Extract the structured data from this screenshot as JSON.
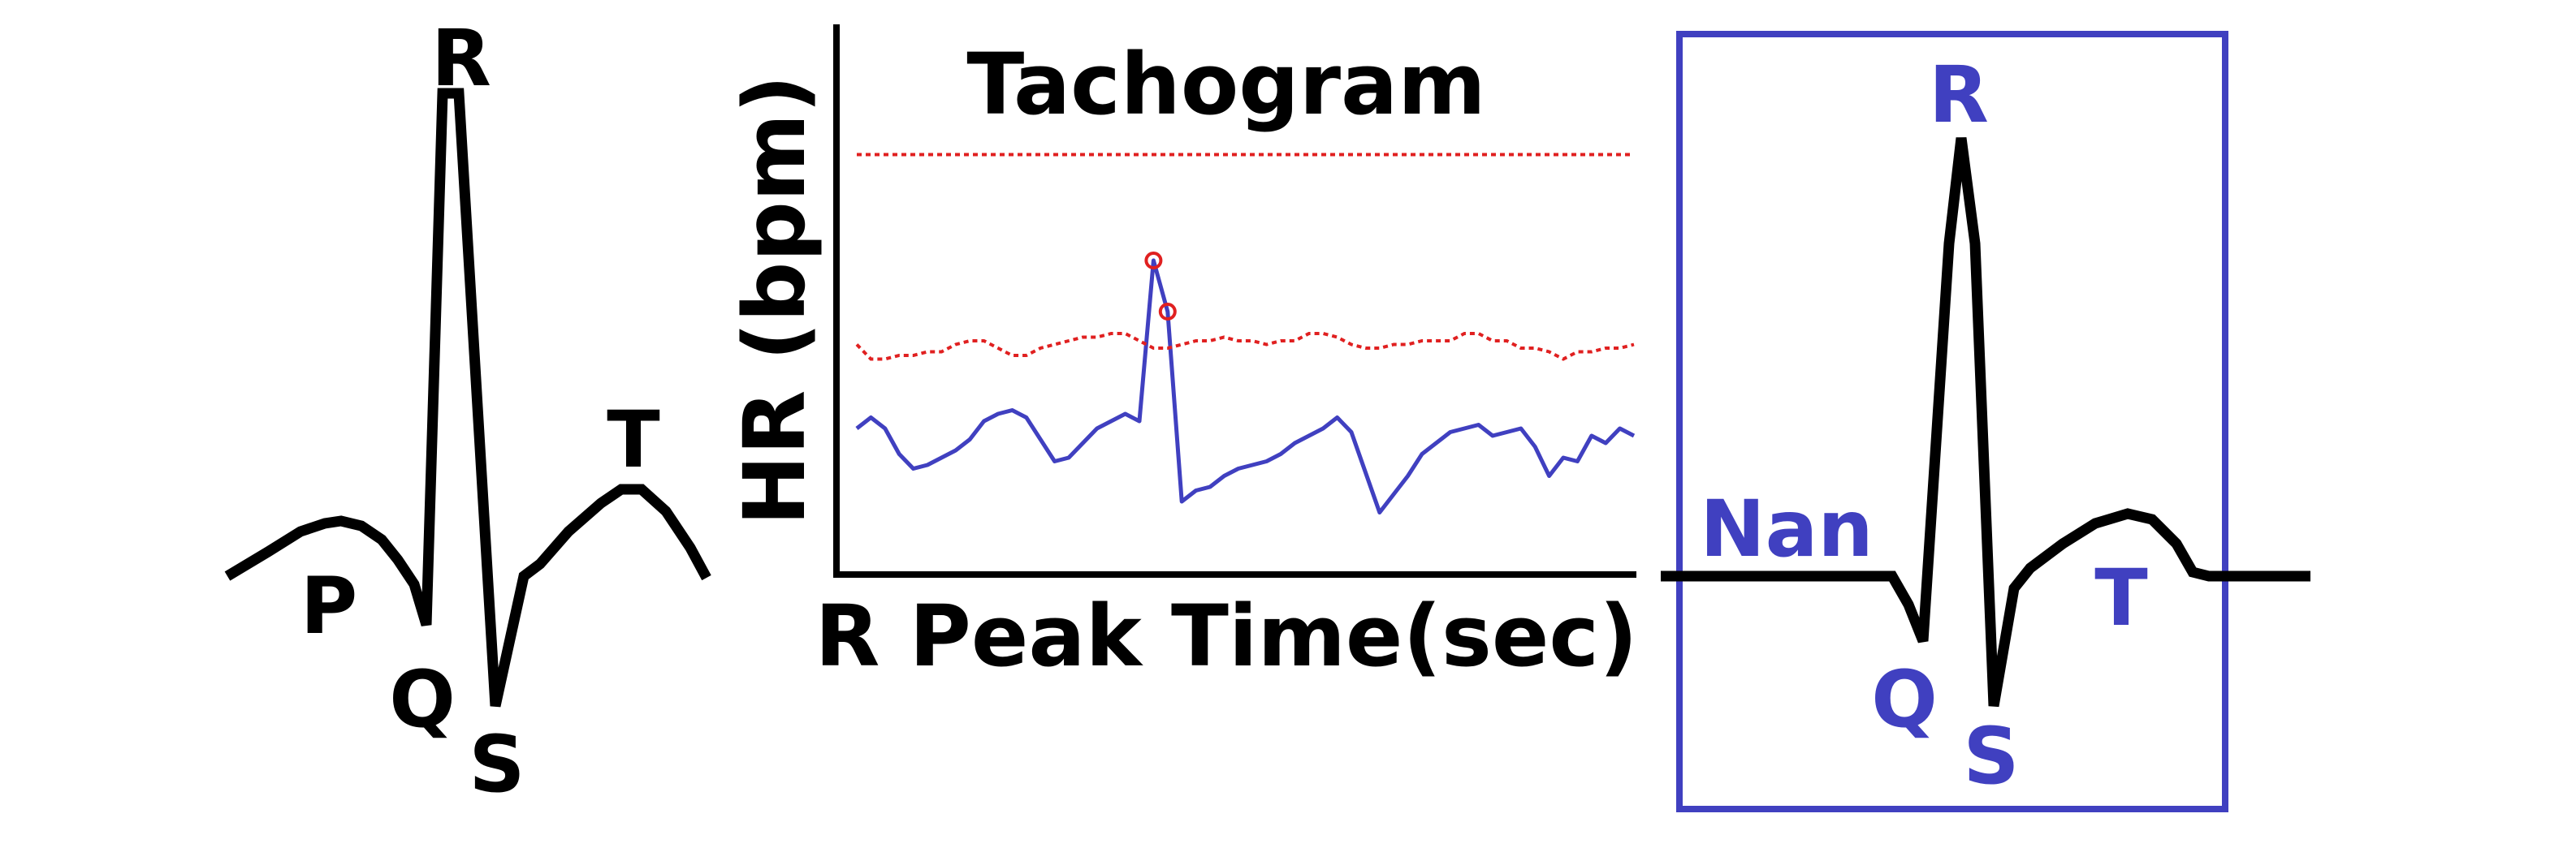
{
  "left_panel": {
    "wave_labels": {
      "p": "P",
      "q": "Q",
      "r": "R",
      "s": "S",
      "t": "T"
    },
    "color": "#000000"
  },
  "tachogram": {
    "title": "Tachogram",
    "xlabel": "R Peak Time(sec)",
    "ylabel": "HR (bpm)"
  },
  "chart_data": {
    "type": "line",
    "title": "Tachogram",
    "xlabel": "R Peak Time(sec)",
    "ylabel": "HR (bpm)",
    "x_ticks_printed": false,
    "y_ticks_printed": false,
    "grid": false,
    "series": [
      {
        "role": "hr",
        "style": "solid",
        "color": "#4040c0",
        "values": [
          36,
          39,
          36,
          29,
          25,
          26,
          28,
          30,
          33,
          38,
          40,
          41,
          39,
          33,
          27,
          28,
          32,
          36,
          38,
          40,
          38,
          82,
          68,
          16,
          19,
          20,
          23,
          25,
          26,
          27,
          29,
          32,
          34,
          36,
          39,
          35,
          24,
          13,
          18,
          23,
          29,
          32,
          35,
          36,
          37,
          34,
          35,
          36,
          31,
          23,
          28,
          27,
          34,
          32,
          36,
          34
        ]
      },
      {
        "role": "upper-threshold",
        "style": "dotted",
        "color": "#e02020",
        "values": [
          111,
          111
        ]
      },
      {
        "role": "lower-threshold",
        "style": "dotted",
        "color": "#e02020",
        "values": [
          59,
          55,
          55,
          56,
          56,
          57,
          57,
          59,
          60,
          60,
          58,
          56,
          56,
          58,
          59,
          60,
          61,
          61,
          62,
          62,
          60,
          58,
          58,
          59,
          60,
          60,
          61,
          60,
          60,
          59,
          60,
          60,
          62,
          62,
          61,
          59,
          58,
          58,
          59,
          59,
          60,
          60,
          60,
          62,
          62,
          60,
          60,
          58,
          58,
          57,
          55,
          57,
          57,
          58,
          58,
          59
        ]
      }
    ],
    "flagged_points": [
      {
        "index": 21,
        "color": "#e02020"
      },
      {
        "index": 22,
        "color": "#e02020"
      }
    ]
  },
  "right_panel": {
    "wave_labels": {
      "r": "R",
      "q": "Q",
      "s": "S",
      "t": "T",
      "nan": "Nan"
    },
    "color": "#4040c0"
  }
}
